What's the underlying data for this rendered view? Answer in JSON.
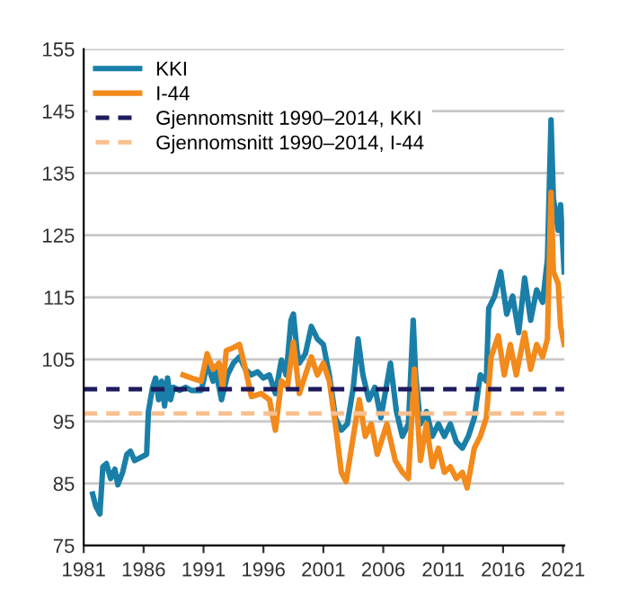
{
  "chart_data": {
    "type": "line",
    "xlim": [
      1981,
      2021.1
    ],
    "xticks": [
      1981,
      1986,
      1991,
      1996,
      2001,
      2006,
      2011,
      2016,
      2021
    ],
    "ylim": [
      75,
      155
    ],
    "yticks": [
      75,
      85,
      95,
      105,
      115,
      125,
      135,
      145,
      155
    ],
    "grid": "y",
    "legend": "top left",
    "line_style": "solid",
    "marker": "none",
    "series": [
      {
        "name": "KKI",
        "color": "#1a7fa8",
        "x": [
          1981.75,
          1982.0,
          1982.35,
          1982.6,
          1982.9,
          1983.25,
          1983.6,
          1983.85,
          1984.25,
          1984.6,
          1984.9,
          1985.25,
          1985.75,
          1986.25,
          1986.4,
          1986.75,
          1987.0,
          1987.25,
          1987.5,
          1987.75,
          1988.0,
          1988.25,
          1988.5,
          1989.0,
          1989.5,
          1990.0,
          1990.8,
          1991.0,
          1991.3,
          1991.8,
          1992.0,
          1992.5,
          1993.0,
          1993.5,
          1994.0,
          1994.5,
          1995.0,
          1995.5,
          1996.0,
          1996.5,
          1997.0,
          1997.5,
          1997.9,
          1998.3,
          1998.5,
          1998.8,
          1999.0,
          1999.5,
          2000.0,
          2000.5,
          2001.0,
          2001.5,
          2001.8,
          2002.0,
          2002.5,
          2003.0,
          2003.5,
          2003.9,
          2004.3,
          2004.8,
          2005.3,
          2005.8,
          2006.6,
          2007.1,
          2007.6,
          2008.1,
          2008.5,
          2008.7,
          2009.1,
          2009.6,
          2010.1,
          2010.6,
          2011.1,
          2011.6,
          2012.1,
          2012.6,
          2013.1,
          2013.6,
          2014.1,
          2014.6,
          2014.8,
          2015.3,
          2015.8,
          2016.3,
          2016.8,
          2017.3,
          2017.8,
          2018.3,
          2018.8,
          2019.3,
          2019.7,
          2020.0,
          2020.2,
          2020.6,
          2020.8,
          2021.1
        ],
        "values": [
          83.3,
          81.4,
          80.1,
          87.7,
          88.2,
          85.8,
          87.3,
          84.8,
          86.8,
          89.7,
          90.2,
          88.7,
          89.2,
          89.7,
          96.6,
          100.5,
          102,
          98.5,
          101.5,
          97.5,
          102,
          98.5,
          100.5,
          100,
          100.5,
          100,
          100,
          101.5,
          104.4,
          101.5,
          103.4,
          98.5,
          102.5,
          104.4,
          105.4,
          103.4,
          102.5,
          103,
          102,
          102.5,
          99.5,
          104.9,
          102.5,
          111.3,
          112.3,
          106.4,
          104.4,
          105.9,
          110.3,
          108.3,
          107.4,
          102.5,
          98.5,
          95.6,
          93.6,
          94.6,
          100.5,
          108.3,
          102.5,
          98.5,
          100.5,
          95.6,
          104.4,
          96.6,
          92.6,
          94.6,
          111.3,
          102.5,
          94.6,
          96.6,
          92.6,
          94.6,
          92.6,
          94.6,
          91.7,
          90.7,
          92.6,
          95.6,
          102.5,
          101.5,
          113.2,
          115.2,
          119.1,
          112.3,
          115.2,
          109.3,
          118.1,
          111.3,
          116.2,
          114.2,
          121.1,
          143.6,
          130.9,
          125.8,
          129.9,
          119.1
        ]
      },
      {
        "name": "I-44",
        "color": "#f28a1c",
        "x": [
          1989.3,
          1990.0,
          1990.8,
          1991.3,
          1991.8,
          1992.3,
          1992.6,
          1992.9,
          1993.5,
          1994.0,
          1994.5,
          1995.0,
          1995.8,
          1996.5,
          1997.0,
          1997.5,
          1998.0,
          1998.5,
          1999.0,
          1999.5,
          2000.0,
          2000.5,
          2001.0,
          2001.5,
          2002.0,
          2002.5,
          2002.9,
          2003.5,
          2004.0,
          2004.5,
          2005.0,
          2005.5,
          2006.3,
          2007.0,
          2007.6,
          2008.1,
          2008.6,
          2009.1,
          2009.6,
          2010.1,
          2010.6,
          2011.1,
          2011.6,
          2012.1,
          2012.6,
          2013.0,
          2013.6,
          2014.1,
          2014.6,
          2015.0,
          2015.6,
          2016.1,
          2016.6,
          2017.1,
          2017.8,
          2018.3,
          2018.8,
          2019.3,
          2019.7,
          2020.0,
          2020.2,
          2020.6,
          2020.8,
          2021.1
        ],
        "values": [
          102.5,
          102,
          101.5,
          105.9,
          103.4,
          104.4,
          100.5,
          106.4,
          106.9,
          107.4,
          103.4,
          99,
          99.5,
          98.5,
          93.6,
          101.5,
          100.5,
          107.8,
          99.5,
          102.5,
          105.4,
          102.5,
          104.4,
          101.5,
          94.6,
          86.8,
          85.3,
          92.6,
          98.5,
          92.6,
          94.6,
          89.7,
          94.6,
          88.7,
          86.8,
          85.8,
          103.4,
          88.7,
          94.6,
          87.7,
          90.7,
          86.8,
          87.7,
          85.8,
          86.8,
          84.3,
          90.7,
          92.6,
          95.6,
          105.4,
          108.8,
          102.5,
          107.4,
          102.5,
          109.3,
          103.4,
          107.4,
          105.4,
          108.3,
          131.9,
          119.1,
          117.2,
          110.3,
          107.4
        ]
      }
    ],
    "ref_lines": [
      {
        "axis": "y",
        "value": 100.2,
        "label": "Gjennomsnitt 1990–2014, KKI",
        "color": "#1d1a5e",
        "line_style": "dashed"
      },
      {
        "axis": "y",
        "value": 96.3,
        "label": "Gjennomsnitt 1990–2014, I-44",
        "color": "#f9c08f",
        "line_style": "dashed"
      }
    ]
  }
}
